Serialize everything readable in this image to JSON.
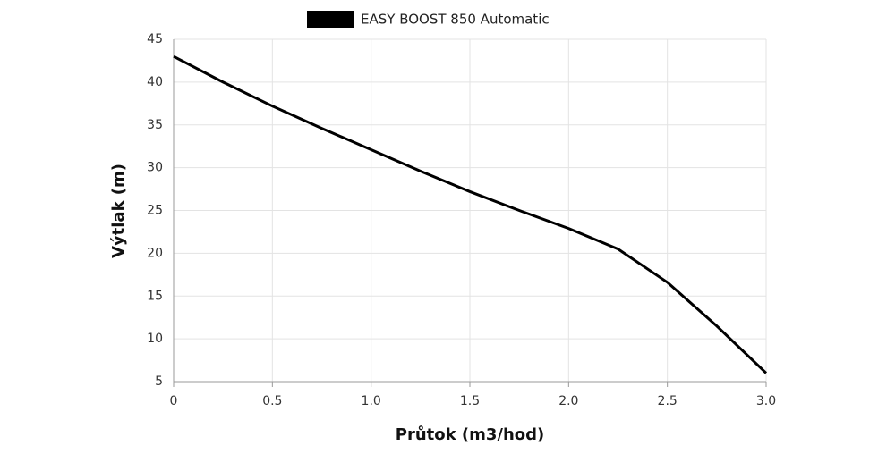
{
  "chart_data": {
    "type": "line",
    "xlabel": "Průtok (m3/hod)",
    "ylabel": "Výtlak (m)",
    "x": [
      0,
      0.25,
      0.5,
      0.75,
      1.0,
      1.25,
      1.5,
      1.75,
      2.0,
      2.25,
      2.5,
      2.75,
      3.0
    ],
    "series": [
      {
        "name": "EASY BOOST 850 Automatic",
        "color": "#000000",
        "values": [
          43,
          40,
          37.2,
          34.6,
          32.1,
          29.6,
          27.2,
          25.0,
          22.9,
          20.5,
          16.6,
          11.5,
          6.0
        ]
      }
    ],
    "xlim": [
      0,
      3
    ],
    "xticks": [
      0,
      0.5,
      {
        "value": 1,
        "label": "1.0"
      },
      1.5,
      {
        "value": 2,
        "label": "2.0"
      },
      2.5,
      {
        "value": 3,
        "label": "3.0"
      }
    ],
    "ylim": [
      5,
      45
    ],
    "yticks": [
      5,
      10,
      15,
      20,
      25,
      30,
      35,
      40,
      45
    ],
    "grid": true,
    "legend": "top"
  }
}
